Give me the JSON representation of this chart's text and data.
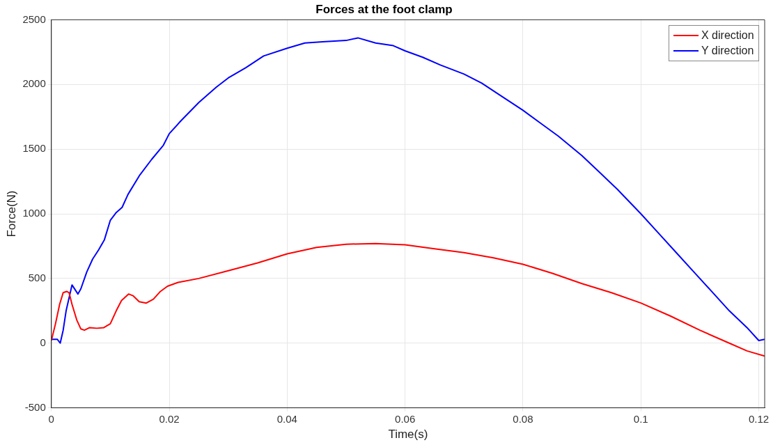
{
  "chart_data": {
    "type": "line",
    "title": "Forces at the foot clamp",
    "xlabel": "Time(s)",
    "ylabel": "Force(N)",
    "xlim": [
      0,
      0.121
    ],
    "xticks": [
      0,
      0.02,
      0.04,
      0.06,
      0.08,
      0.1,
      0.12
    ],
    "ylim": [
      -500,
      2500
    ],
    "yticks": [
      -500,
      0,
      500,
      1000,
      1500,
      2000,
      2500
    ],
    "grid": true,
    "legend": "top right",
    "marker": "none",
    "line_style": "solid",
    "series": [
      {
        "name": "X direction",
        "color": "#ff0000",
        "x": [
          0,
          0.0007,
          0.0014,
          0.002,
          0.0026,
          0.003,
          0.0035,
          0.0043,
          0.005,
          0.0056,
          0.0065,
          0.0077,
          0.0089,
          0.01,
          0.011,
          0.0119,
          0.0131,
          0.0139,
          0.0149,
          0.0161,
          0.0173,
          0.0185,
          0.0197,
          0.0215,
          0.025,
          0.03,
          0.035,
          0.04,
          0.045,
          0.05,
          0.055,
          0.06,
          0.065,
          0.07,
          0.075,
          0.08,
          0.085,
          0.09,
          0.095,
          0.1,
          0.105,
          0.11,
          0.115,
          0.118,
          0.121
        ],
        "values": [
          20,
          150,
          300,
          390,
          400,
          390,
          300,
          180,
          110,
          100,
          120,
          115,
          120,
          150,
          250,
          330,
          380,
          365,
          320,
          310,
          340,
          400,
          440,
          470,
          500,
          560,
          620,
          690,
          740,
          765,
          770,
          760,
          730,
          700,
          660,
          610,
          540,
          460,
          390,
          310,
          210,
          100,
          0,
          -60,
          -100
        ]
      },
      {
        "name": "Y direction",
        "color": "#0000ff",
        "x": [
          0,
          0.001,
          0.0015,
          0.002,
          0.0025,
          0.003,
          0.0035,
          0.0045,
          0.005,
          0.006,
          0.007,
          0.008,
          0.009,
          0.01,
          0.011,
          0.012,
          0.013,
          0.015,
          0.017,
          0.019,
          0.02,
          0.022,
          0.025,
          0.028,
          0.03,
          0.033,
          0.036,
          0.04,
          0.043,
          0.046,
          0.05,
          0.052,
          0.055,
          0.058,
          0.06,
          0.063,
          0.066,
          0.07,
          0.073,
          0.076,
          0.08,
          0.083,
          0.086,
          0.09,
          0.093,
          0.096,
          0.1,
          0.103,
          0.106,
          0.109,
          0.112,
          0.115,
          0.118,
          0.12,
          0.121
        ],
        "values": [
          30,
          30,
          0,
          100,
          250,
          350,
          450,
          380,
          420,
          550,
          650,
          720,
          800,
          950,
          1010,
          1050,
          1150,
          1300,
          1420,
          1530,
          1620,
          1720,
          1860,
          1980,
          2050,
          2130,
          2220,
          2280,
          2320,
          2330,
          2340,
          2360,
          2320,
          2300,
          2260,
          2210,
          2150,
          2080,
          2010,
          1920,
          1800,
          1700,
          1600,
          1450,
          1320,
          1190,
          1000,
          850,
          700,
          550,
          400,
          250,
          120,
          20,
          30
        ]
      }
    ]
  }
}
